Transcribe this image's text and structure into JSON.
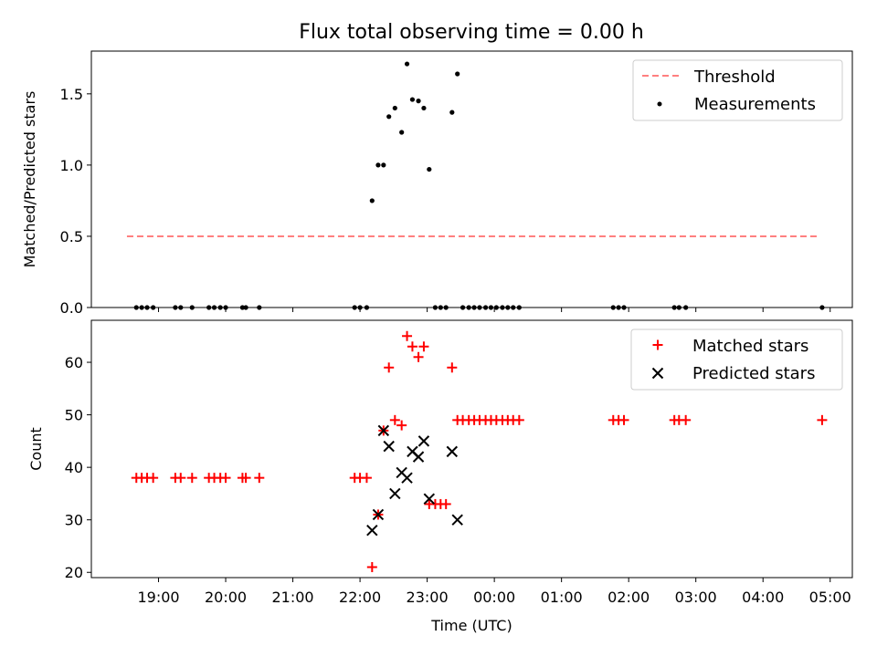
{
  "chart_data": {
    "type": "scatter",
    "title": "Flux total observing time = 0.00 h",
    "xlabel": "Time (UTC)",
    "x_domain_hours": [
      18.0,
      29.33
    ],
    "x_ticks": [
      {
        "h": 19,
        "label": "19:00"
      },
      {
        "h": 20,
        "label": "20:00"
      },
      {
        "h": 21,
        "label": "21:00"
      },
      {
        "h": 22,
        "label": "22:00"
      },
      {
        "h": 23,
        "label": "23:00"
      },
      {
        "h": 24,
        "label": "00:00"
      },
      {
        "h": 25,
        "label": "01:00"
      },
      {
        "h": 26,
        "label": "02:00"
      },
      {
        "h": 27,
        "label": "03:00"
      },
      {
        "h": 28,
        "label": "04:00"
      },
      {
        "h": 29,
        "label": "05:00"
      }
    ],
    "panels": [
      {
        "id": "ratio",
        "ylabel": "Matched/Predicted stars",
        "ylim": [
          0,
          1.8
        ],
        "y_ticks": [
          {
            "v": 0.0,
            "label": "0.0"
          },
          {
            "v": 0.5,
            "label": "0.5"
          },
          {
            "v": 1.0,
            "label": "1.0"
          },
          {
            "v": 1.5,
            "label": "1.5"
          }
        ],
        "legend": {
          "position": "top-right",
          "entries": [
            {
              "label": "Threshold",
              "kind": "dashed-line",
              "color": "#ff7f7f"
            },
            {
              "label": "Measurements",
              "kind": "dot",
              "color": "#000000"
            }
          ]
        },
        "threshold": {
          "name": "Threshold",
          "value": 0.5,
          "x_range": [
            18.53,
            28.8
          ],
          "color": "#ff7f7f"
        },
        "measurements": {
          "name": "Measurements",
          "color": "#000000",
          "x": [
            18.67,
            18.75,
            18.83,
            18.92,
            19.25,
            19.33,
            19.5,
            19.75,
            19.83,
            19.92,
            20.0,
            20.25,
            20.3,
            20.5,
            21.92,
            22.0,
            22.1,
            22.18,
            22.27,
            22.35,
            22.43,
            22.52,
            22.62,
            22.7,
            22.78,
            22.87,
            22.95,
            23.03,
            23.12,
            23.2,
            23.28,
            23.37,
            23.45,
            23.53,
            23.62,
            23.7,
            23.78,
            23.87,
            23.95,
            24.03,
            24.12,
            24.2,
            24.28,
            24.37,
            25.77,
            25.85,
            25.93,
            26.68,
            26.75,
            26.85,
            28.88
          ],
          "y": [
            0,
            0,
            0,
            0,
            0,
            0,
            0,
            0,
            0,
            0,
            0,
            0,
            0,
            0,
            0,
            0,
            0,
            0.75,
            1.0,
            1.0,
            1.34,
            1.4,
            1.23,
            1.71,
            1.46,
            1.45,
            1.4,
            0.97,
            0,
            0,
            0,
            1.37,
            1.64,
            0,
            0,
            0,
            0,
            0,
            0,
            0,
            0,
            0,
            0,
            0,
            0,
            0,
            0,
            0,
            0,
            0,
            0
          ]
        }
      },
      {
        "id": "count",
        "ylabel": "Count",
        "ylim": [
          19,
          68
        ],
        "y_ticks": [
          {
            "v": 20,
            "label": "20"
          },
          {
            "v": 30,
            "label": "30"
          },
          {
            "v": 40,
            "label": "40"
          },
          {
            "v": 50,
            "label": "50"
          },
          {
            "v": 60,
            "label": "60"
          }
        ],
        "legend": {
          "position": "top-right",
          "entries": [
            {
              "label": "Matched stars",
              "kind": "plus",
              "color": "#ff0000"
            },
            {
              "label": "Predicted stars",
              "kind": "x",
              "color": "#000000"
            }
          ]
        },
        "matched": {
          "name": "Matched stars",
          "color": "#ff0000",
          "x": [
            18.67,
            18.75,
            18.83,
            18.92,
            19.25,
            19.33,
            19.5,
            19.75,
            19.83,
            19.92,
            20.0,
            20.25,
            20.3,
            20.5,
            21.92,
            22.0,
            22.1,
            22.18,
            22.27,
            22.35,
            22.43,
            22.52,
            22.62,
            22.7,
            22.78,
            22.87,
            22.95,
            23.03,
            23.12,
            23.2,
            23.28,
            23.37,
            23.45,
            23.53,
            23.62,
            23.7,
            23.78,
            23.87,
            23.95,
            24.03,
            24.12,
            24.2,
            24.28,
            24.37,
            25.77,
            25.85,
            25.93,
            26.68,
            26.75,
            26.85,
            28.88
          ],
          "y": [
            38,
            38,
            38,
            38,
            38,
            38,
            38,
            38,
            38,
            38,
            38,
            38,
            38,
            38,
            38,
            38,
            38,
            21,
            31,
            47,
            59,
            49,
            48,
            65,
            63,
            61,
            63,
            33,
            33,
            33,
            33,
            59,
            49,
            49,
            49,
            49,
            49,
            49,
            49,
            49,
            49,
            49,
            49,
            49,
            49,
            49,
            49,
            49,
            49,
            49,
            49
          ]
        },
        "predicted": {
          "name": "Predicted stars",
          "color": "#000000",
          "x": [
            22.18,
            22.27,
            22.35,
            22.43,
            22.52,
            22.62,
            22.7,
            22.78,
            22.87,
            22.95,
            23.03,
            23.37,
            23.45
          ],
          "y": [
            28,
            31,
            47,
            44,
            35,
            39,
            38,
            43,
            42,
            45,
            34,
            43,
            30
          ]
        }
      }
    ]
  }
}
